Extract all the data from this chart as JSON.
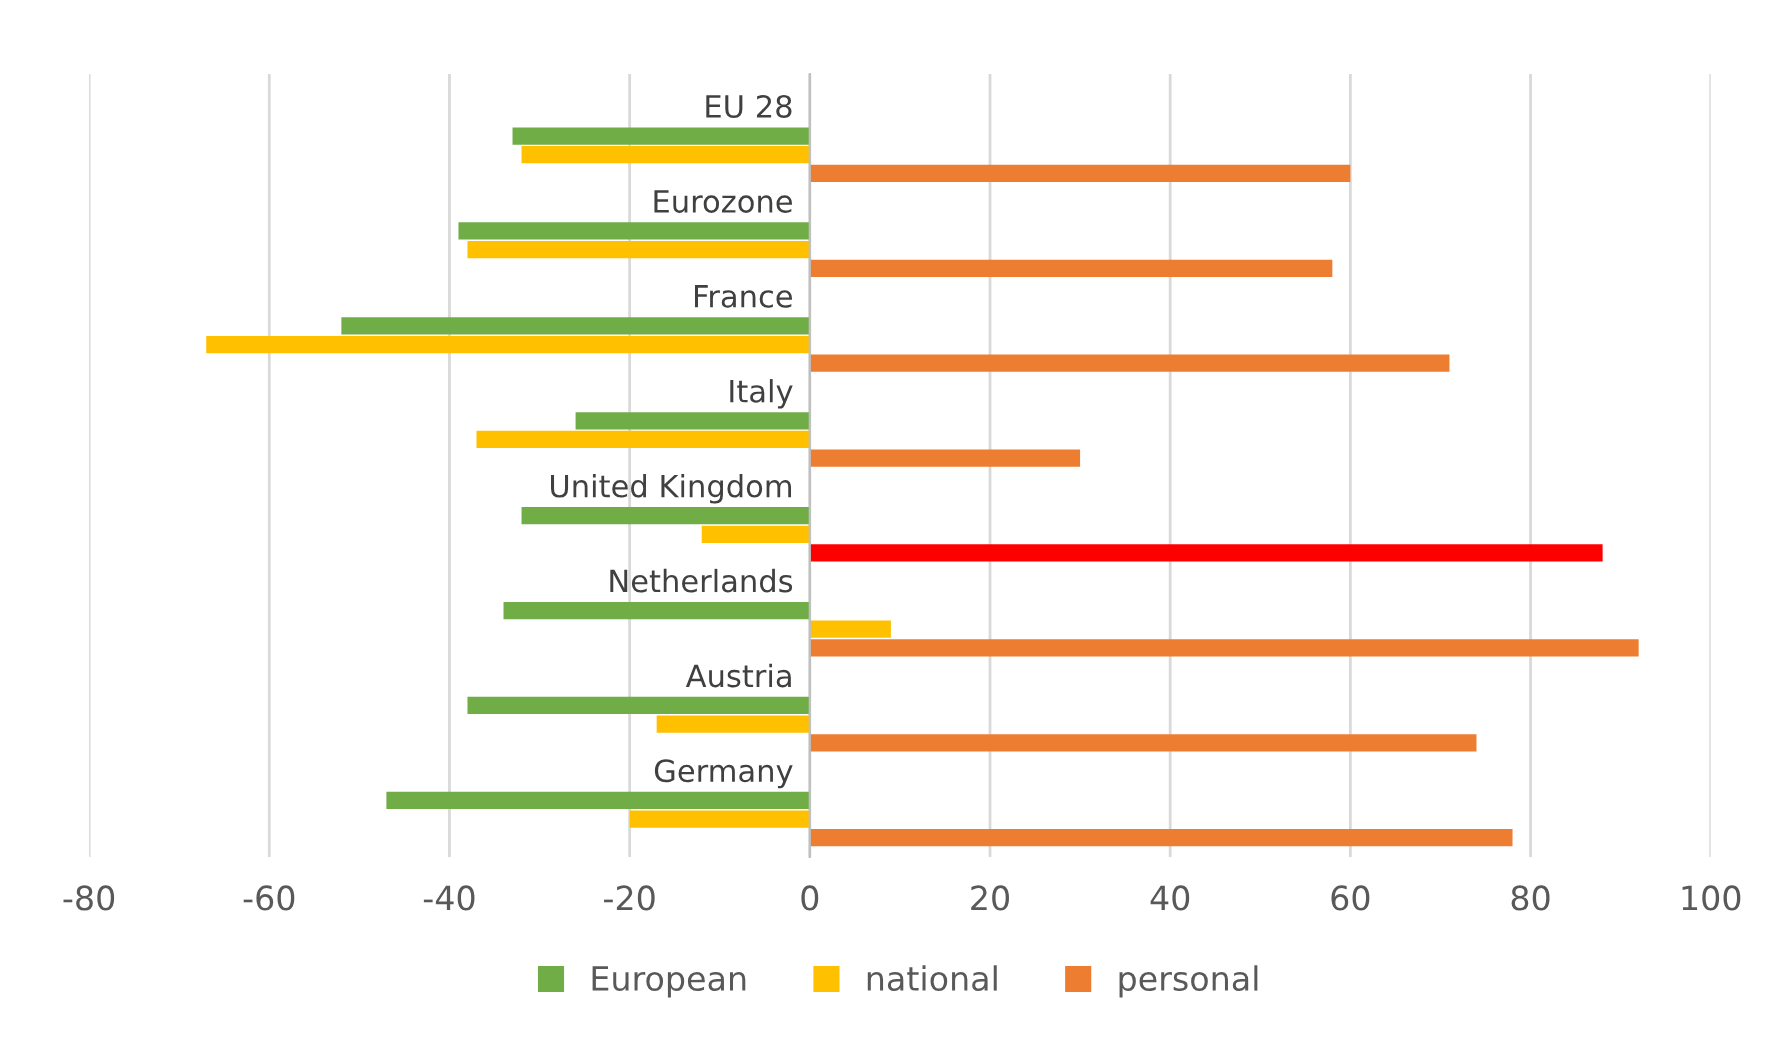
{
  "chart_data": {
    "type": "bar",
    "orientation": "horizontal",
    "categories": [
      "EU 28",
      "Eurozone",
      "France",
      "Italy",
      "United Kingdom",
      "Netherlands",
      "Austria",
      "Germany"
    ],
    "series": [
      {
        "name": "European",
        "color": "#70ad47",
        "values": [
          -33,
          -39,
          -52,
          -26,
          -32,
          -34,
          -38,
          -47
        ]
      },
      {
        "name": "national",
        "color": "#ffc000",
        "values": [
          -32,
          -38,
          -67,
          -37,
          -12,
          9,
          -17,
          -20
        ]
      },
      {
        "name": "personal",
        "color": "#ed7d31",
        "colors": [
          "#ed7d31",
          "#ed7d31",
          "#ed7d31",
          "#ed7d31",
          "#ff0000",
          "#ed7d31",
          "#ed7d31",
          "#ed7d31"
        ],
        "values": [
          60,
          58,
          71,
          30,
          88,
          92,
          74,
          78
        ]
      }
    ],
    "xlim": [
      -80,
      100
    ],
    "xticks": [
      -80,
      -60,
      -40,
      -20,
      0,
      20,
      40,
      60,
      80,
      100
    ],
    "grid": "x",
    "legend": "bottom"
  }
}
